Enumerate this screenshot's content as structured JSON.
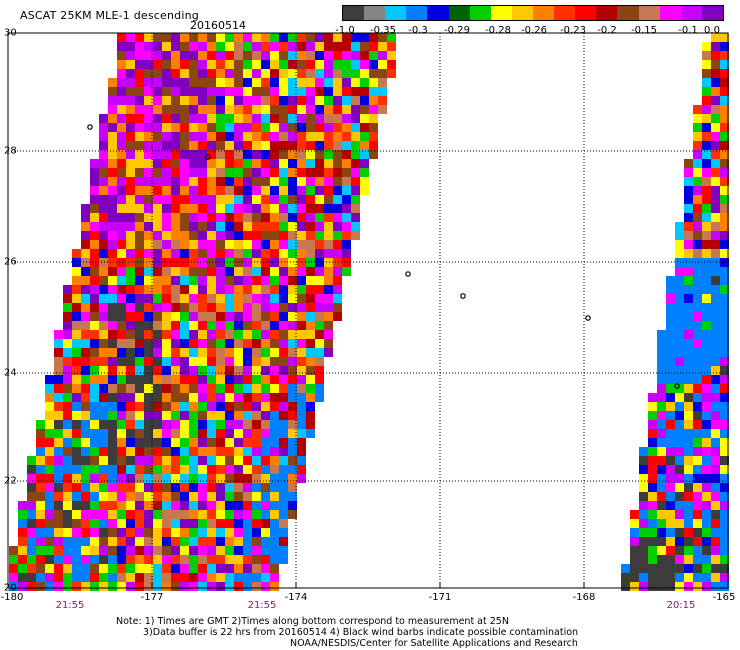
{
  "header": {
    "title": "ASCAT 25KM MLE-1 descending",
    "date": "20160514"
  },
  "colorbar": {
    "colors": [
      "#3c3c3c",
      "#848484",
      "#00c8ff",
      "#0080ff",
      "#0000e0",
      "#006400",
      "#00d000",
      "#ffff00",
      "#ffc800",
      "#ff8000",
      "#ff3000",
      "#ff0000",
      "#b40000",
      "#8b4513",
      "#c87850",
      "#ff00ff",
      "#c800ff",
      "#8000c0"
    ],
    "labels": [
      "-1.0",
      "-0.35",
      "-0.3",
      "-0.29",
      "-0.28",
      "-0.26",
      "-0.23",
      "-0.2",
      "-0.15",
      "-0.1",
      "0.0"
    ]
  },
  "axes": {
    "x_ticks": [
      "-180",
      "-177",
      "-174",
      "-171",
      "-168",
      "-165"
    ],
    "y_ticks": [
      "30",
      "28",
      "26",
      "24",
      "22",
      "20"
    ]
  },
  "times": [
    "21:55",
    "21:55",
    "20:15"
  ],
  "notes": {
    "line1": "Note: 1) Times are GMT 2)Times along bottom correspond to measurement at 25N",
    "line2": "3)Data buffer is 22 hrs from 20160514 4) Black wind barbs indicate possible contamination",
    "line3": "NOAA/NESDIS/Center for Satellite Applications and Research"
  }
}
